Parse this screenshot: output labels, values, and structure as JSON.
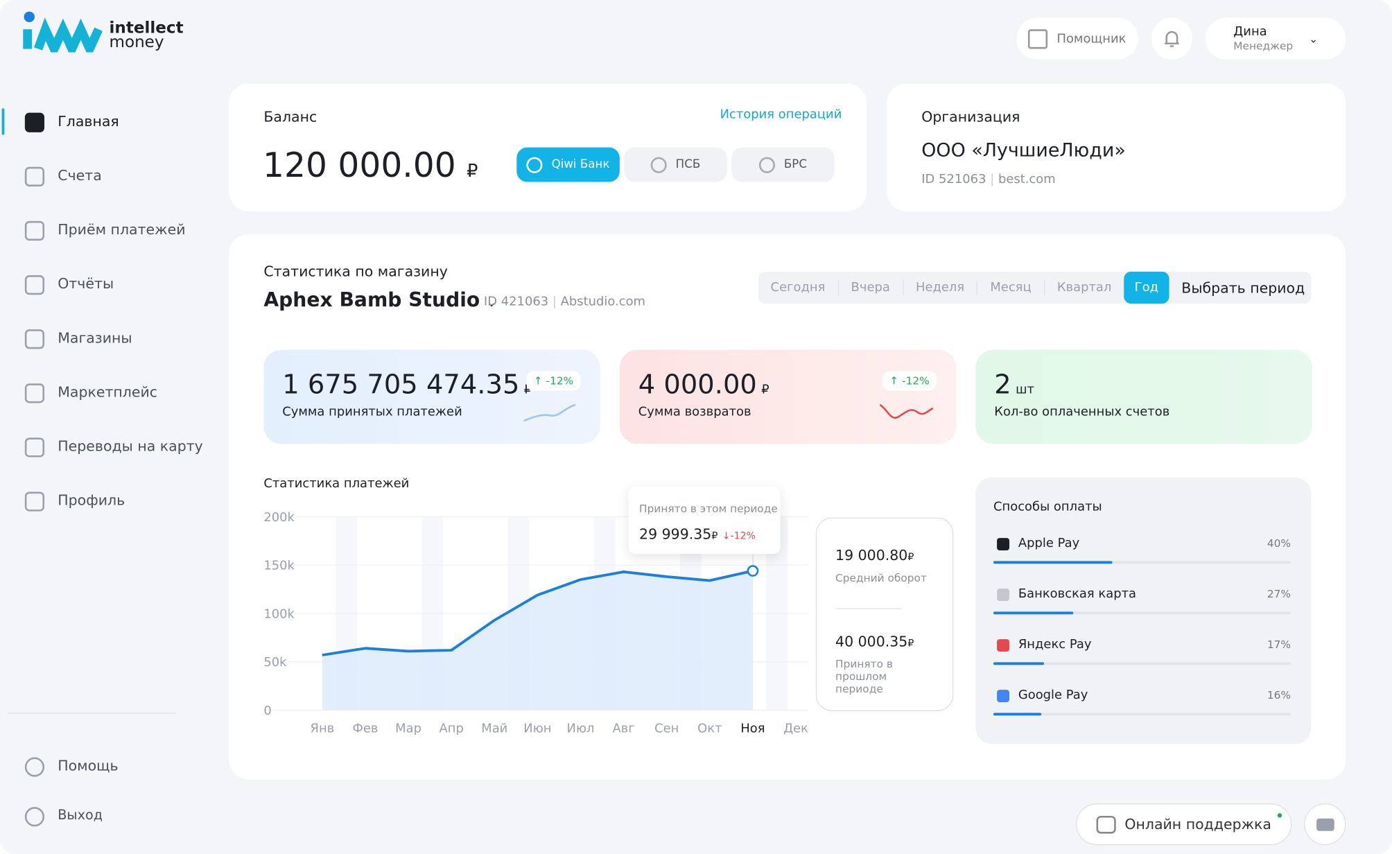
{
  "brand": {
    "line1": "intellect",
    "line2": "money"
  },
  "header": {
    "assistant": "Помощник",
    "user_name": "Дина",
    "user_role": "Менеджер"
  },
  "nav": [
    "Главная",
    "Счета",
    "Приём платежей",
    "Отчёты",
    "Магазины",
    "Маркетплейс",
    "Переводы на карту",
    "Профиль"
  ],
  "nav_bottom": [
    "Помощь",
    "Выход"
  ],
  "balance": {
    "label": "Баланс",
    "history": "История операций",
    "amount": "120 000.00",
    "currency": "₽",
    "banks": [
      "Qiwi Банк",
      "ПСБ",
      "БРС"
    ]
  },
  "organization": {
    "label": "Организация",
    "name": "ООО «ЛучшиеЛюди»",
    "id": "ID 521063",
    "site": "best.com"
  },
  "stats": {
    "label": "Статистика по магазину",
    "shop": "Aphex Bamb Studio",
    "id": "ID 421063",
    "site": "Abstudio.com",
    "periods": [
      "Сегодня",
      "Вчера",
      "Неделя",
      "Месяц",
      "Квартал",
      "Год"
    ],
    "choose": "Выбрать период",
    "cards": [
      {
        "value": "1 675 705 474.35",
        "currency": "₽",
        "change": "-12%",
        "label": "Сумма принятых платежей"
      },
      {
        "value": "4 000.00",
        "currency": "₽",
        "change": "-12%",
        "label": "Сумма возвратов"
      },
      {
        "value": "2",
        "currency": "шт",
        "label": "Кол-во оплаченных счетов"
      }
    ]
  },
  "chart_data": {
    "type": "line",
    "title": "Статистика платежей",
    "categories": [
      "Янв",
      "Фев",
      "Мар",
      "Апр",
      "Май",
      "Июн",
      "Июл",
      "Авг",
      "Сен",
      "Окт",
      "Ноя",
      "Дек"
    ],
    "values": [
      57000,
      64000,
      61000,
      62000,
      93000,
      119000,
      135000,
      143000,
      138000,
      134000,
      144000,
      null
    ],
    "color": "#1a7fe0",
    "ylim": [
      0,
      200000
    ],
    "yticks": [
      0,
      {
        "value": 50000,
        "label": "50k"
      },
      {
        "value": 100000,
        "label": "100k"
      },
      {
        "value": 150000,
        "label": "150k"
      },
      {
        "value": 200000,
        "label": "200k"
      }
    ],
    "tooltip": {
      "label": "Принято в этом периоде",
      "value": "29 999.35",
      "currency": "₽",
      "change": "-12%"
    }
  },
  "summary": [
    {
      "value": "19 000.80",
      "currency": "₽",
      "label": "Средний оборот"
    },
    {
      "value": "40 000.35",
      "currency": "₽",
      "label": "Принято в прошлом периоде"
    }
  ],
  "payment_methods": {
    "title": "Способы оплаты",
    "names": [
      "Apple Pay",
      "Банковская карта",
      "Яндекс Pay",
      "Google Pay"
    ],
    "values": [
      40,
      27,
      17,
      16
    ],
    "value_labels": [
      "40%",
      "27%",
      "17%",
      "16%"
    ]
  },
  "support": "Онлайн поддержка"
}
